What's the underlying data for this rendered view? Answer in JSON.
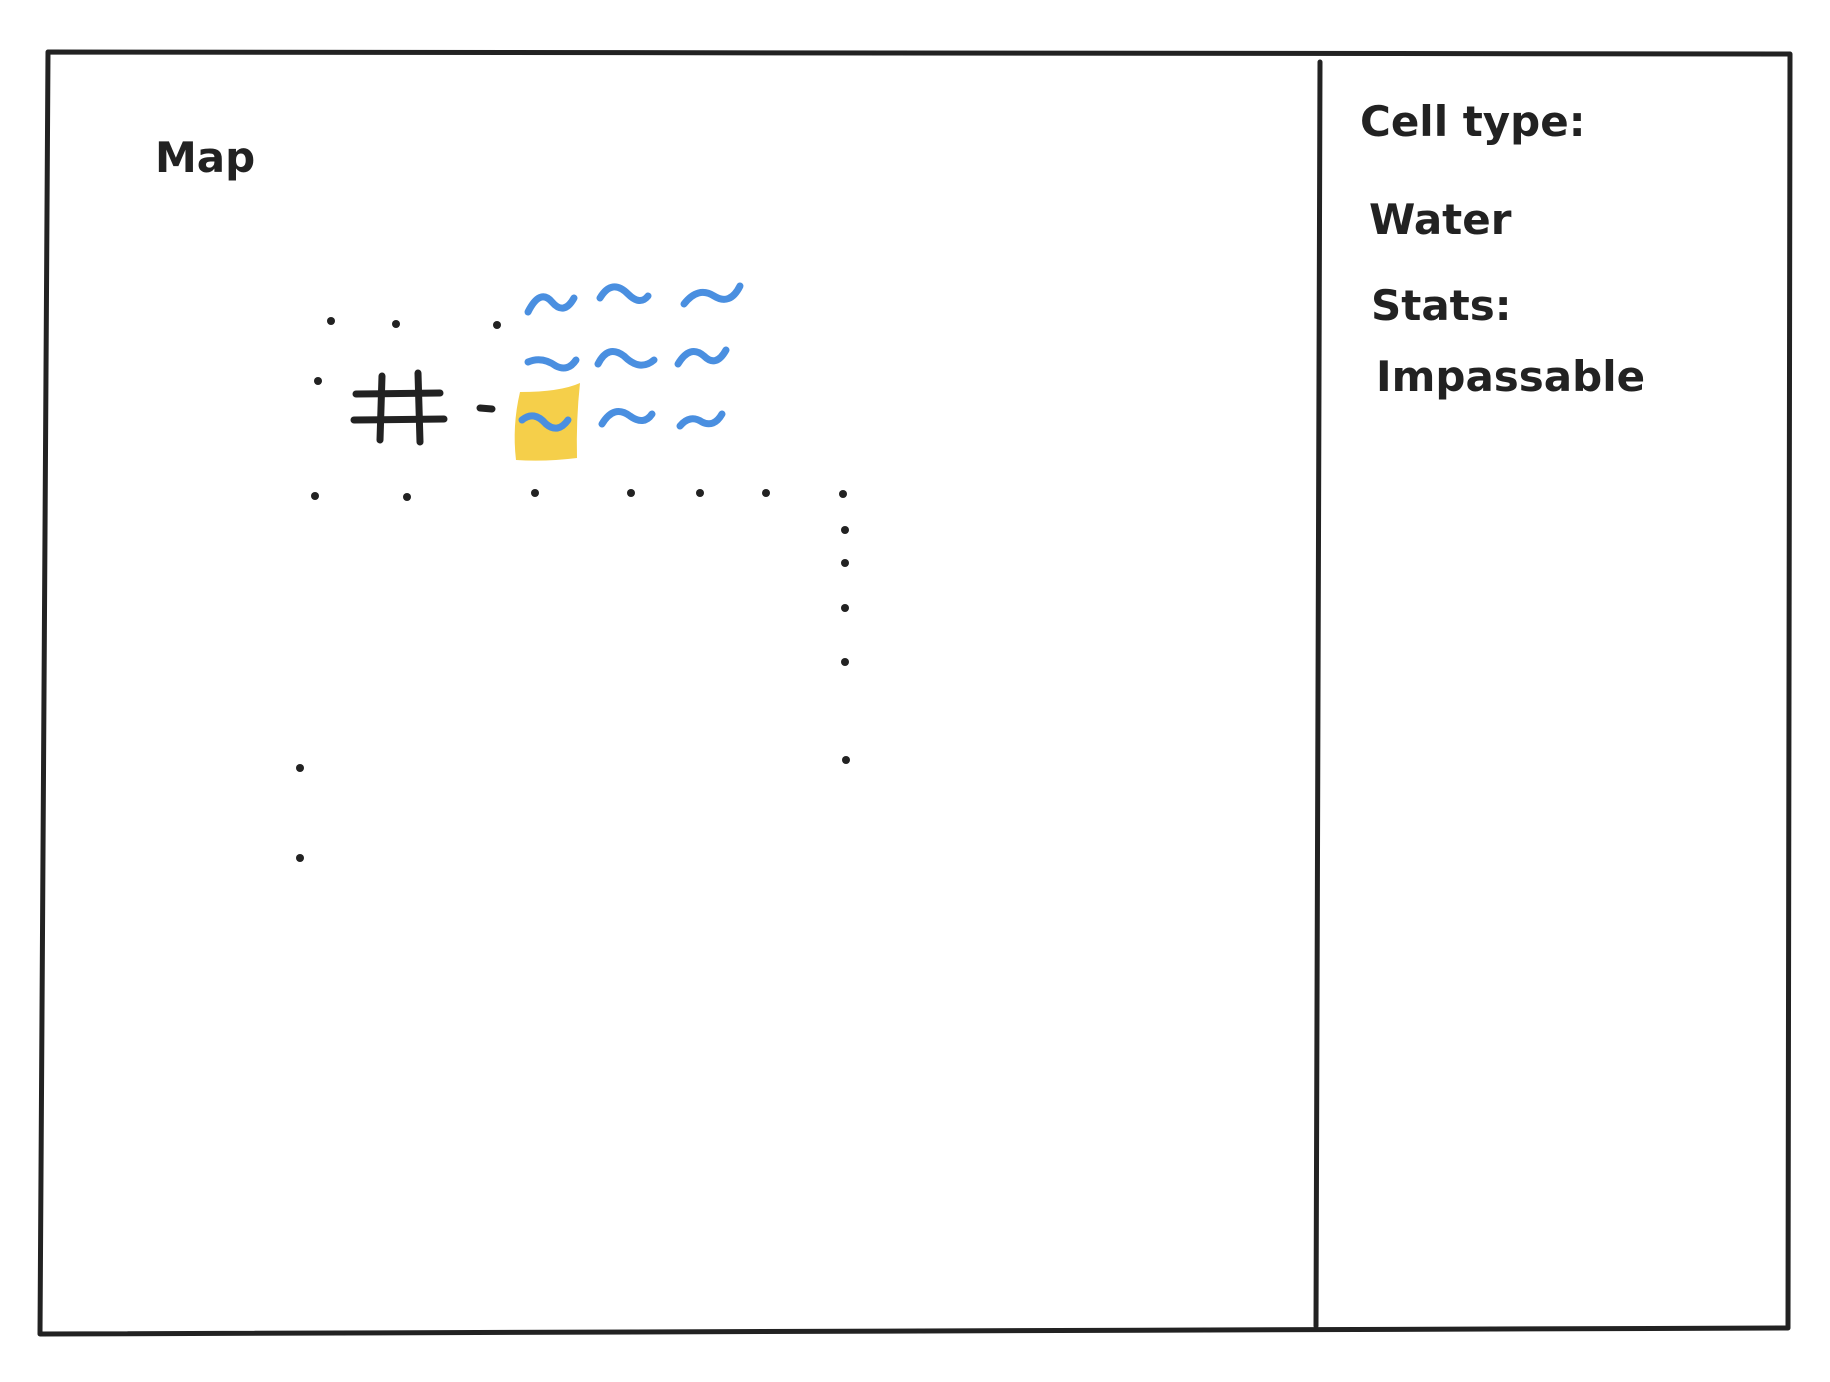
{
  "map_panel": {
    "title": "Map"
  },
  "info_panel": {
    "cell_type_label": "Cell type:",
    "cell_type_value": "Water",
    "stats_label": "Stats:",
    "stats_value": "Impassable"
  },
  "legend_icons": {
    "wall": "hash-icon",
    "water": "tilde-icon",
    "floor": "dot-icon",
    "door": "dash-icon"
  },
  "colors": {
    "ink": "#222222",
    "water": "#4a8fe0",
    "selection": "#f5cf4a"
  }
}
